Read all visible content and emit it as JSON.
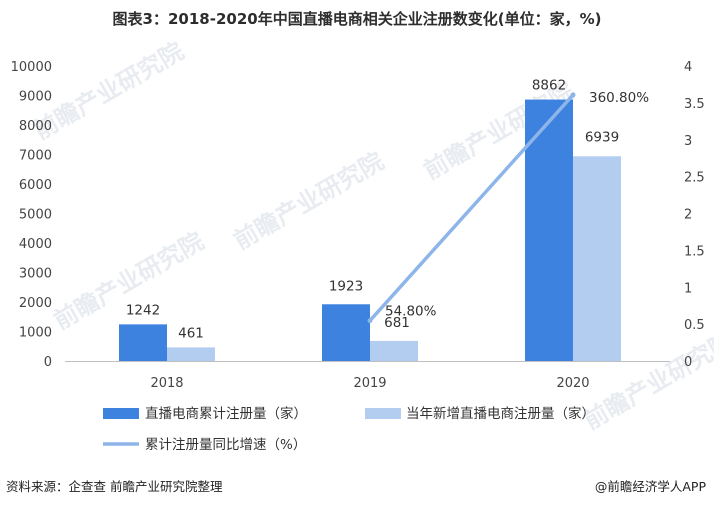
{
  "title": "图表3：2018-2020年中国直播电商相关企业注册数变化(单位：家，%)",
  "footer": {
    "source": "资料来源：企查查 前瞻产业研究院整理",
    "brand": "@前瞻经济学人APP"
  },
  "watermark": "前瞻产业研究院",
  "colors": {
    "series1": "#3d82df",
    "series2": "#b3cdf1",
    "line": "#8db5ea"
  },
  "chart_data": {
    "type": "bar",
    "categories": [
      "2018",
      "2019",
      "2020"
    ],
    "series": [
      {
        "name": "直播电商累计注册量（家）",
        "type": "bar",
        "axis": "left",
        "values": [
          1242,
          1923,
          8862
        ],
        "labels": [
          "1242",
          "1923",
          "8862"
        ]
      },
      {
        "name": "当年新增直播电商注册量（家）",
        "type": "bar",
        "axis": "left",
        "values": [
          461,
          681,
          6939
        ],
        "labels": [
          "461",
          "681",
          "6939"
        ]
      },
      {
        "name": "累计注册量同比增速（%）",
        "type": "line",
        "axis": "right",
        "x": [
          "2019",
          "2020"
        ],
        "values": [
          0.548,
          3.608
        ],
        "labels": [
          "54.80%",
          "360.80%"
        ]
      }
    ],
    "y_left": {
      "lim": [
        0,
        10000
      ],
      "ticks": [
        "0",
        "1000",
        "2000",
        "3000",
        "4000",
        "5000",
        "6000",
        "7000",
        "8000",
        "9000",
        "10000"
      ]
    },
    "y_right": {
      "lim": [
        0,
        4
      ],
      "ticks": [
        "0",
        "0.5",
        "1",
        "1.5",
        "2",
        "2.5",
        "3",
        "3.5",
        "4"
      ]
    },
    "grid": false,
    "legend_position": "bottom"
  }
}
